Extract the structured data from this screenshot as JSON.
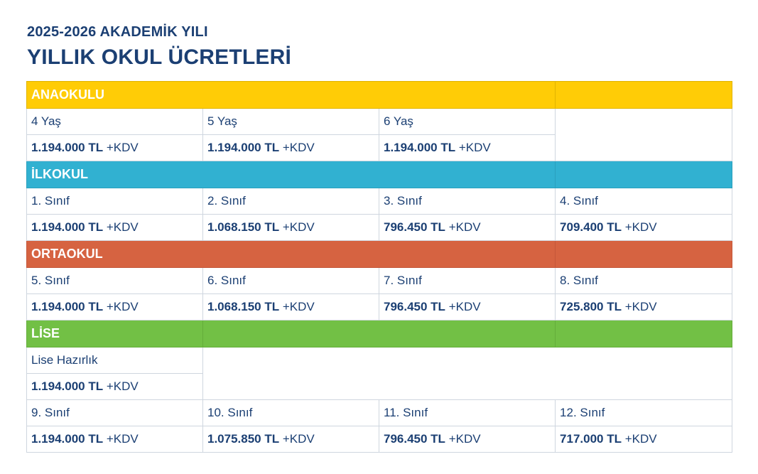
{
  "header": {
    "subtitle": "2025-2026 AKADEMİK YILI",
    "title": "YILLIK OKUL ÜCRETLERİ"
  },
  "colors": {
    "title": "#1b3f73",
    "anaokulu": "#ffcc06",
    "ilkokul": "#31b1d1",
    "ortaokul": "#d66341",
    "lise": "#72c045"
  },
  "suffix": "+KDV",
  "anaokulu": {
    "label": "ANAOKULU",
    "levels": [
      {
        "name": "4 Yaş",
        "price": "1.194.000 TL"
      },
      {
        "name": "5 Yaş",
        "price": "1.194.000 TL"
      },
      {
        "name": "6 Yaş",
        "price": "1.194.000 TL"
      }
    ]
  },
  "ilkokul": {
    "label": "İLKOKUL",
    "levels": [
      {
        "name": "1. Sınıf",
        "price": "1.194.000 TL"
      },
      {
        "name": "2. Sınıf",
        "price": "1.068.150 TL"
      },
      {
        "name": "3. Sınıf",
        "price": "796.450 TL"
      },
      {
        "name": "4. Sınıf",
        "price": "709.400 TL"
      }
    ]
  },
  "ortaokul": {
    "label": "ORTAOKUL",
    "levels": [
      {
        "name": "5. Sınıf",
        "price": "1.194.000 TL"
      },
      {
        "name": "6. Sınıf",
        "price": "1.068.150 TL"
      },
      {
        "name": "7. Sınıf",
        "price": "796.450 TL"
      },
      {
        "name": "8. Sınıf",
        "price": "725.800 TL"
      }
    ]
  },
  "lise": {
    "label": "LİSE",
    "prep": {
      "name": "Lise Hazırlık",
      "price": "1.194.000 TL"
    },
    "levels": [
      {
        "name": "9. Sınıf",
        "price": "1.194.000 TL"
      },
      {
        "name": "10. Sınıf",
        "price": "1.075.850 TL"
      },
      {
        "name": "11. Sınıf",
        "price": "796.450 TL"
      },
      {
        "name": "12. Sınıf",
        "price": "717.000 TL"
      }
    ]
  }
}
